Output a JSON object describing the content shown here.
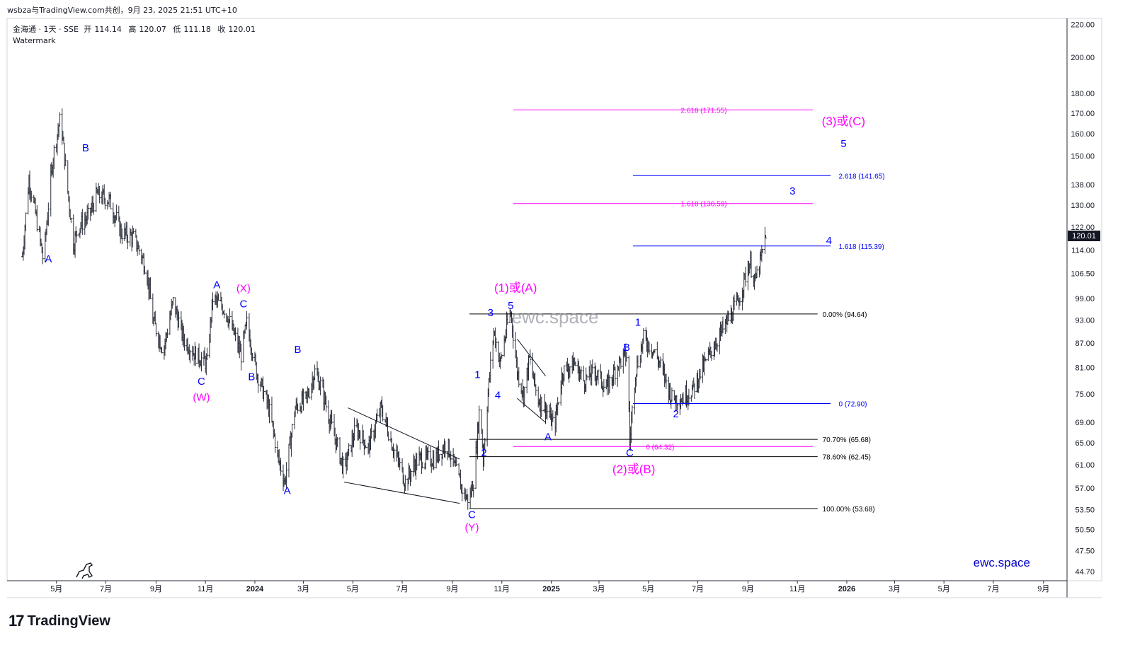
{
  "header": {
    "share_text": "wsbza与TradingView.com共创，9月 23, 2025 21:51 UTC+10"
  },
  "legend": {
    "symbol": "金海通 · 1天 · SSE",
    "open_label": "开",
    "open": "114.14",
    "high_label": "高",
    "high": "120.07",
    "low_label": "低",
    "low": "111.18",
    "close_label": "收",
    "close": "120.01",
    "indicator": "Watermark"
  },
  "watermark": "ewc.space",
  "brand_text": "ewc.space",
  "footer": {
    "logo_text": "TradingView"
  },
  "colors": {
    "wave_blue": "#0000ff",
    "wave_magenta": "#ff00ff",
    "fib_black": "#000000",
    "candles": "#2a2e39",
    "last_price_bg": "#131722"
  },
  "chart_data": {
    "type": "ohlc",
    "y_scale": "log",
    "ylim": [
      43.5,
      224
    ],
    "xlim": [
      "2023-03-01",
      "2026-09-30"
    ],
    "price_ticks": [
      "220.00",
      "200.00",
      "180.00",
      "170.00",
      "160.00",
      "150.00",
      "138.00",
      "130.00",
      "122.00",
      "114.00",
      "106.50",
      "99.00",
      "93.00",
      "87.00",
      "81.00",
      "75.00",
      "69.00",
      "65.00",
      "61.00",
      "57.00",
      "53.50",
      "50.50",
      "47.50",
      "44.70"
    ],
    "last_price": "120.01",
    "time_ticks": [
      {
        "date": "2023-05-01",
        "label": "5月"
      },
      {
        "date": "2023-07-01",
        "label": "7月"
      },
      {
        "date": "2023-09-01",
        "label": "9月"
      },
      {
        "date": "2023-11-01",
        "label": "11月"
      },
      {
        "date": "2024-01-01",
        "label": "2024"
      },
      {
        "date": "2024-03-01",
        "label": "3月"
      },
      {
        "date": "2024-05-01",
        "label": "5月"
      },
      {
        "date": "2024-07-01",
        "label": "7月"
      },
      {
        "date": "2024-09-01",
        "label": "9月"
      },
      {
        "date": "2024-11-01",
        "label": "11月"
      },
      {
        "date": "2025-01-01",
        "label": "2025"
      },
      {
        "date": "2025-03-01",
        "label": "3月"
      },
      {
        "date": "2025-05-01",
        "label": "5月"
      },
      {
        "date": "2025-07-01",
        "label": "7月"
      },
      {
        "date": "2025-09-01",
        "label": "9月"
      },
      {
        "date": "2025-11-01",
        "label": "11月"
      },
      {
        "date": "2026-01-01",
        "label": "2026"
      },
      {
        "date": "2026-03-01",
        "label": "3月"
      },
      {
        "date": "2026-05-01",
        "label": "5月"
      },
      {
        "date": "2026-07-01",
        "label": "7月"
      },
      {
        "date": "2026-09-01",
        "label": "9月"
      }
    ],
    "price_path": [
      [
        "2023-03-20",
        112
      ],
      [
        "2023-03-28",
        140
      ],
      [
        "2023-04-08",
        122
      ],
      [
        "2023-04-15",
        110
      ],
      [
        "2023-04-27",
        150
      ],
      [
        "2023-05-02",
        160
      ],
      [
        "2023-05-06",
        168
      ],
      [
        "2023-05-14",
        138
      ],
      [
        "2023-05-22",
        116
      ],
      [
        "2023-05-28",
        122
      ],
      [
        "2023-06-10",
        126
      ],
      [
        "2023-06-20",
        134
      ],
      [
        "2023-07-05",
        132
      ],
      [
        "2023-07-20",
        120
      ],
      [
        "2023-08-05",
        118
      ],
      [
        "2023-08-20",
        108
      ],
      [
        "2023-08-28",
        93
      ],
      [
        "2023-09-10",
        85
      ],
      [
        "2023-09-22",
        98
      ],
      [
        "2023-10-05",
        88
      ],
      [
        "2023-10-20",
        84
      ],
      [
        "2023-11-03",
        82
      ],
      [
        "2023-11-10",
        99
      ],
      [
        "2023-11-25",
        96
      ],
      [
        "2023-12-05",
        90
      ],
      [
        "2023-12-15",
        84
      ],
      [
        "2023-12-22",
        92
      ],
      [
        "2024-01-03",
        80
      ],
      [
        "2024-01-18",
        72
      ],
      [
        "2024-01-30",
        62
      ],
      [
        "2024-02-07",
        58
      ],
      [
        "2024-02-20",
        72
      ],
      [
        "2024-03-05",
        74
      ],
      [
        "2024-03-15",
        80
      ],
      [
        "2024-03-22",
        77
      ],
      [
        "2024-04-05",
        68
      ],
      [
        "2024-04-20",
        60
      ],
      [
        "2024-05-05",
        68
      ],
      [
        "2024-05-20",
        64
      ],
      [
        "2024-06-05",
        72
      ],
      [
        "2024-06-20",
        64
      ],
      [
        "2024-07-05",
        58
      ],
      [
        "2024-07-20",
        62
      ],
      [
        "2024-08-10",
        62
      ],
      [
        "2024-08-25",
        65
      ],
      [
        "2024-09-05",
        60
      ],
      [
        "2024-09-15",
        56
      ],
      [
        "2024-09-22",
        55
      ],
      [
        "2024-09-28",
        59
      ],
      [
        "2024-10-05",
        73
      ],
      [
        "2024-10-09",
        62
      ],
      [
        "2024-10-15",
        75
      ],
      [
        "2024-10-22",
        90
      ],
      [
        "2024-10-30",
        82
      ],
      [
        "2024-11-08",
        92
      ],
      [
        "2024-11-12",
        95
      ],
      [
        "2024-11-20",
        80
      ],
      [
        "2024-11-28",
        75
      ],
      [
        "2024-12-05",
        83
      ],
      [
        "2024-12-15",
        74
      ],
      [
        "2024-12-25",
        72
      ],
      [
        "2025-01-05",
        68
      ],
      [
        "2025-01-15",
        80
      ],
      [
        "2025-01-30",
        82
      ],
      [
        "2025-02-10",
        78
      ],
      [
        "2025-02-25",
        80
      ],
      [
        "2025-03-10",
        76
      ],
      [
        "2025-03-25",
        82
      ],
      [
        "2025-04-05",
        84
      ],
      [
        "2025-04-08",
        65
      ],
      [
        "2025-04-15",
        80
      ],
      [
        "2025-04-25",
        88
      ],
      [
        "2025-05-05",
        86
      ],
      [
        "2025-05-15",
        82
      ],
      [
        "2025-05-30",
        74
      ],
      [
        "2025-06-10",
        74
      ],
      [
        "2025-06-25",
        76
      ],
      [
        "2025-07-05",
        80
      ],
      [
        "2025-07-20",
        86
      ],
      [
        "2025-08-05",
        92
      ],
      [
        "2025-08-20",
        98
      ],
      [
        "2025-09-03",
        110
      ],
      [
        "2025-09-10",
        104
      ],
      [
        "2025-09-18",
        112
      ],
      [
        "2025-09-23",
        120
      ]
    ],
    "wave_labels": [
      {
        "text": "A",
        "date": "2023-04-21",
        "price": 110,
        "color": "blue",
        "size": "small"
      },
      {
        "text": "B",
        "date": "2023-06-06",
        "price": 152,
        "color": "blue",
        "size": "small"
      },
      {
        "text": "A",
        "date": "2023-11-15",
        "price": 102,
        "color": "blue",
        "size": "small"
      },
      {
        "text": "(X)",
        "date": "2023-12-18",
        "price": 101,
        "color": "magenta",
        "size": "small"
      },
      {
        "text": "C",
        "date": "2023-12-18",
        "price": 96.5,
        "color": "blue",
        "size": "small"
      },
      {
        "text": "C",
        "date": "2023-10-27",
        "price": 77,
        "color": "blue",
        "size": "small"
      },
      {
        "text": "(W)",
        "date": "2023-10-27",
        "price": 73.5,
        "color": "magenta",
        "size": "small"
      },
      {
        "text": "B",
        "date": "2023-12-28",
        "price": 78,
        "color": "blue",
        "size": "small"
      },
      {
        "text": "B",
        "date": "2024-02-23",
        "price": 84.5,
        "color": "blue",
        "size": "small"
      },
      {
        "text": "A",
        "date": "2024-02-10",
        "price": 56,
        "color": "blue",
        "size": "small"
      },
      {
        "text": "C",
        "date": "2024-09-25",
        "price": 52.2,
        "color": "blue",
        "size": "small"
      },
      {
        "text": "(Y)",
        "date": "2024-09-25",
        "price": 50.3,
        "color": "magenta",
        "size": "small"
      },
      {
        "text": "1",
        "date": "2024-10-02",
        "price": 78.5,
        "color": "blue",
        "size": "small"
      },
      {
        "text": "2",
        "date": "2024-10-10",
        "price": 62.5,
        "color": "blue",
        "size": "small"
      },
      {
        "text": "3",
        "date": "2024-10-18",
        "price": 94,
        "color": "blue",
        "size": "small"
      },
      {
        "text": "4",
        "date": "2024-10-27",
        "price": 74,
        "color": "blue",
        "size": "small"
      },
      {
        "text": "5",
        "date": "2024-11-12",
        "price": 96,
        "color": "blue",
        "size": "small"
      },
      {
        "text": "(1)或(A)",
        "date": "2024-11-18",
        "price": 101,
        "color": "magenta",
        "size": "large"
      },
      {
        "text": "A",
        "date": "2024-12-28",
        "price": 65.5,
        "color": "blue",
        "size": "small"
      },
      {
        "text": "B",
        "date": "2025-04-04",
        "price": 85,
        "color": "blue",
        "size": "small"
      },
      {
        "text": "C",
        "date": "2025-04-08",
        "price": 62.5,
        "color": "blue",
        "size": "small"
      },
      {
        "text": "(2)或(B)",
        "date": "2025-04-13",
        "price": 59.5,
        "color": "magenta",
        "size": "large"
      },
      {
        "text": "1",
        "date": "2025-04-18",
        "price": 91.5,
        "color": "blue",
        "size": "small"
      },
      {
        "text": "2",
        "date": "2025-06-04",
        "price": 70,
        "color": "blue",
        "size": "small"
      },
      {
        "text": "3",
        "date": "2025-10-26",
        "price": 134,
        "color": "blue",
        "size": "small"
      },
      {
        "text": "4",
        "date": "2025-12-10",
        "price": 116,
        "color": "blue",
        "size": "small"
      },
      {
        "text": "(3)或(C)",
        "date": "2025-12-28",
        "price": 164,
        "color": "magenta",
        "size": "large"
      },
      {
        "text": "5",
        "date": "2025-12-28",
        "price": 154,
        "color": "blue",
        "size": "small"
      }
    ],
    "fib_levels": [
      {
        "label": "2.618 (171.55)",
        "price": 171.55,
        "start": "2024-11-15",
        "end": "2025-11-20",
        "color": "magenta",
        "label_date": "2025-06-10"
      },
      {
        "label": "1.618 (130.59)",
        "price": 130.59,
        "start": "2024-11-15",
        "end": "2025-11-20",
        "color": "magenta",
        "label_date": "2025-06-10"
      },
      {
        "label": "0 (64.32)",
        "price": 64.32,
        "start": "2024-11-15",
        "end": "2025-11-20",
        "color": "magenta",
        "label_date": "2025-04-28"
      },
      {
        "label": "2.618 (141.65)",
        "price": 141.65,
        "start": "2025-04-12",
        "end": "2025-12-12",
        "color": "blue",
        "label_date": "2025-12-22"
      },
      {
        "label": "1.618 (115.39)",
        "price": 115.39,
        "start": "2025-04-12",
        "end": "2025-12-12",
        "color": "blue",
        "label_date": "2025-12-22"
      },
      {
        "label": "0 (72.90)",
        "price": 72.9,
        "start": "2025-04-12",
        "end": "2025-12-12",
        "color": "blue",
        "label_date": "2025-12-22"
      },
      {
        "label": "0.00% (94.64)",
        "price": 94.64,
        "start": "2024-09-22",
        "end": "2025-11-26",
        "color": "black",
        "label_date": "2025-12-02"
      },
      {
        "label": "70.70% (65.68)",
        "price": 65.68,
        "start": "2024-09-22",
        "end": "2025-11-26",
        "color": "black",
        "label_date": "2025-12-02"
      },
      {
        "label": "78.60% (62.45)",
        "price": 62.45,
        "start": "2024-09-22",
        "end": "2025-11-26",
        "color": "black",
        "label_date": "2025-12-02"
      },
      {
        "label": "100.00% (53.68)",
        "price": 53.68,
        "start": "2024-09-22",
        "end": "2025-11-26",
        "color": "black",
        "label_date": "2025-12-02"
      }
    ],
    "trendlines": [
      {
        "from": [
          "2024-04-25",
          72
        ],
        "to": [
          "2024-09-10",
          62
        ]
      },
      {
        "from": [
          "2024-04-20",
          58
        ],
        "to": [
          "2024-09-10",
          54.5
        ]
      },
      {
        "from": [
          "2024-11-20",
          88
        ],
        "to": [
          "2024-12-25",
          79
        ]
      },
      {
        "from": [
          "2024-11-20",
          74
        ],
        "to": [
          "2024-12-25",
          69
        ]
      }
    ]
  }
}
